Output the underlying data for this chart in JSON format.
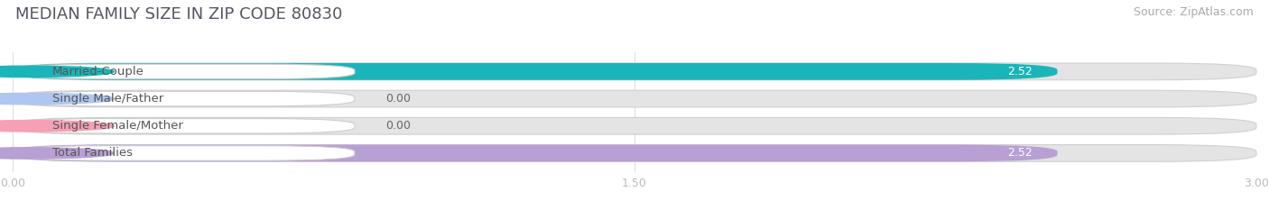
{
  "title": "MEDIAN FAMILY SIZE IN ZIP CODE 80830",
  "source": "Source: ZipAtlas.com",
  "categories": [
    "Married-Couple",
    "Single Male/Father",
    "Single Female/Mother",
    "Total Families"
  ],
  "values": [
    2.52,
    0.0,
    0.0,
    2.52
  ],
  "bar_colors": [
    "#1ab5b8",
    "#afc6f0",
    "#f5a0b5",
    "#b89fd4"
  ],
  "xlim": [
    0,
    3.0
  ],
  "xticks": [
    0.0,
    1.5,
    3.0
  ],
  "xtick_labels": [
    "0.00",
    "1.50",
    "3.00"
  ],
  "bar_height": 0.62,
  "background_color": "#f7f7f7",
  "bar_bg_color": "#e4e4e4",
  "title_fontsize": 13,
  "source_fontsize": 9,
  "label_fontsize": 9.5,
  "value_fontsize": 9
}
